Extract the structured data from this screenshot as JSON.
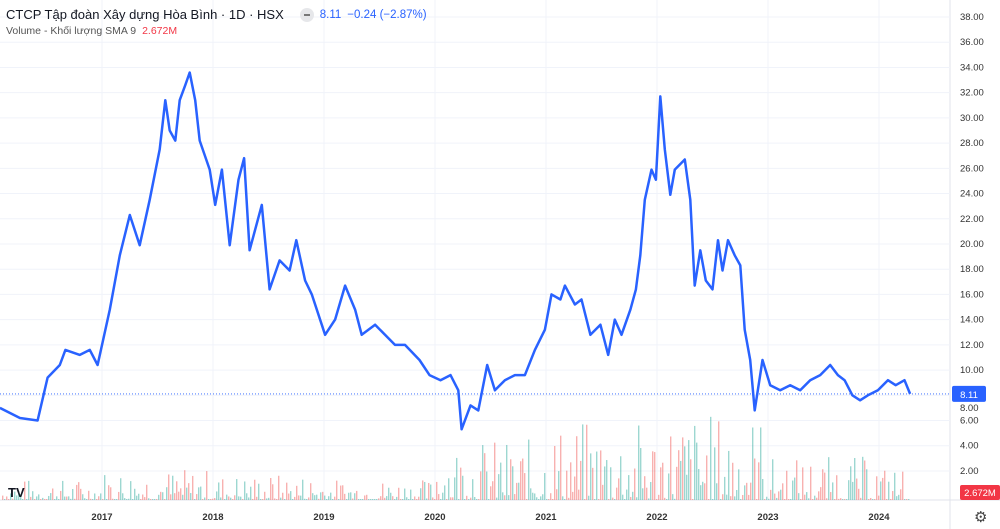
{
  "header": {
    "title": "CTCP Tập đoàn Xây dựng Hòa Bình · 1D · HSX",
    "last": "8.11",
    "change": "−0.24 (−2.87%)",
    "volume_label": "Volume - Khối lượng SMA 9",
    "volume_value": "2.672M"
  },
  "colors": {
    "line": "#2962ff",
    "vol_up": "#26a69a",
    "vol_down": "#ef5350",
    "label_blue": "#2962ff",
    "label_red": "#f23645"
  },
  "icons": {
    "logo": "tradingview-logo",
    "settings": "gear-icon"
  },
  "logo_text": "TV",
  "chart_data": {
    "type": "line",
    "title": "CTCP Tập đoàn Xây dựng Hòa Bình · 1D · HSX",
    "ylim": [
      0,
      38
    ],
    "yticks": [
      "38.00",
      "36.00",
      "34.00",
      "32.00",
      "30.00",
      "28.00",
      "26.00",
      "24.00",
      "22.00",
      "20.00",
      "18.00",
      "16.00",
      "14.00",
      "12.00",
      "10.00",
      "8.00",
      "6.00",
      "4.00",
      "2.00"
    ],
    "xticks": [
      "2017",
      "2018",
      "2019",
      "2020",
      "2021",
      "2022",
      "2023",
      "2024"
    ],
    "last_price_label": "8.11",
    "last_volume_label": "2.672M",
    "series": [
      {
        "name": "Price",
        "x": [
          2016.08,
          2016.26,
          2016.42,
          2016.51,
          2016.62,
          2016.67,
          2016.8,
          2016.89,
          2016.96,
          2017.07,
          2017.16,
          2017.25,
          2017.34,
          2017.43,
          2017.52,
          2017.57,
          2017.61,
          2017.66,
          2017.7,
          2017.75,
          2017.79,
          2017.84,
          2017.88,
          2017.97,
          2018.02,
          2018.08,
          2018.15,
          2018.23,
          2018.28,
          2018.33,
          2018.44,
          2018.51,
          2018.6,
          2018.69,
          2018.75,
          2018.83,
          2018.89,
          2019.01,
          2019.1,
          2019.19,
          2019.28,
          2019.34,
          2019.46,
          2019.55,
          2019.64,
          2019.73,
          2019.86,
          2019.95,
          2020.05,
          2020.14,
          2020.21,
          2020.24,
          2020.32,
          2020.39,
          2020.47,
          2020.54,
          2020.63,
          2020.72,
          2020.81,
          2020.9,
          2020.99,
          2021.05,
          2021.13,
          2021.17,
          2021.26,
          2021.32,
          2021.4,
          2021.49,
          2021.56,
          2021.62,
          2021.68,
          2021.76,
          2021.81,
          2021.85,
          2021.89,
          2021.95,
          2021.99,
          2022.03,
          2022.07,
          2022.12,
          2022.16,
          2022.25,
          2022.3,
          2022.34,
          2022.39,
          2022.44,
          2022.5,
          2022.55,
          2022.59,
          2022.64,
          2022.7,
          2022.75,
          2022.79,
          2022.84,
          2022.88,
          2022.95,
          2023.02,
          2023.11,
          2023.2,
          2023.29,
          2023.38,
          2023.47,
          2023.56,
          2023.63,
          2023.69,
          2023.76,
          2023.83,
          2023.9,
          2023.99,
          2024.08,
          2024.15,
          2024.23,
          2024.28
        ],
        "y": [
          7.0,
          6.2,
          6.0,
          9.4,
          10.4,
          11.6,
          11.2,
          11.6,
          10.4,
          14.8,
          19.1,
          22.3,
          19.9,
          23.5,
          27.5,
          31.4,
          29.0,
          28.2,
          31.4,
          32.6,
          33.6,
          31.4,
          28.2,
          25.9,
          23.1,
          25.9,
          19.9,
          25.1,
          26.8,
          19.5,
          23.1,
          16.4,
          18.7,
          17.9,
          20.3,
          17.1,
          16.0,
          12.8,
          14.0,
          16.7,
          14.8,
          12.8,
          13.6,
          12.8,
          12.0,
          12.0,
          10.8,
          9.6,
          9.2,
          9.6,
          8.4,
          5.3,
          7.2,
          6.8,
          10.4,
          8.4,
          9.2,
          9.6,
          9.6,
          11.6,
          13.2,
          16.0,
          15.6,
          16.7,
          15.2,
          15.6,
          12.8,
          13.6,
          11.2,
          14.0,
          12.8,
          14.8,
          16.4,
          19.1,
          23.5,
          25.9,
          25.1,
          31.7,
          27.5,
          23.9,
          25.9,
          26.7,
          23.5,
          16.7,
          19.5,
          17.1,
          16.4,
          20.3,
          17.9,
          20.3,
          19.1,
          18.3,
          13.2,
          10.8,
          6.8,
          10.8,
          8.8,
          8.4,
          8.8,
          8.4,
          9.2,
          9.6,
          10.4,
          9.6,
          9.2,
          8.0,
          7.6,
          8.0,
          8.4,
          9.2,
          8.8,
          9.2,
          8.11
        ]
      }
    ],
    "volume_relative_by_year": {
      "2016": 0.12,
      "2017": 0.18,
      "2018": 0.15,
      "2019": 0.12,
      "2020": 0.35,
      "2021": 0.45,
      "2022": 0.5,
      "2023": 0.25,
      "2024": 0.2
    }
  }
}
